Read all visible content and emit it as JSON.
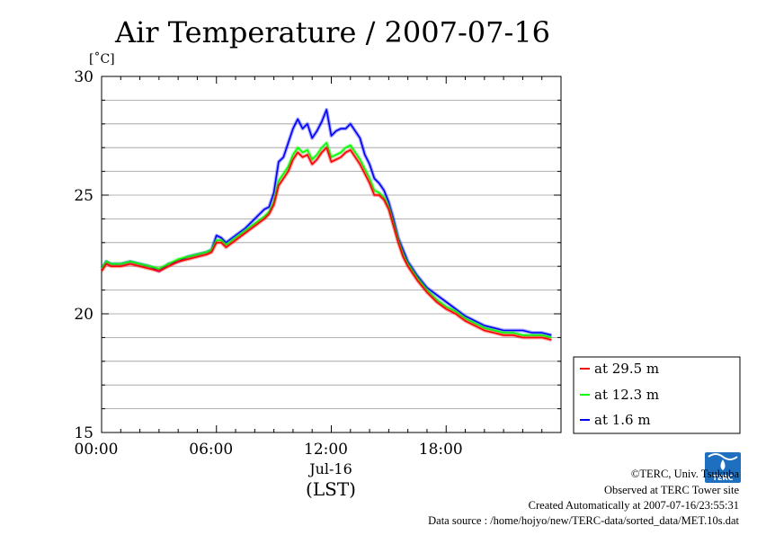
{
  "chart_data": {
    "type": "line",
    "title": "Air Temperature / 2007-07-16",
    "ylabel": "[˚C]",
    "xlabel_date": "Jul-16",
    "xlabel_zone": "(LST)",
    "ylim": [
      15,
      30
    ],
    "xlim_hours": [
      0,
      24
    ],
    "y_ticks": [
      "15",
      "20",
      "25",
      "30"
    ],
    "x_ticks": [
      "00:00",
      "06:00",
      "12:00",
      "18:00"
    ],
    "grid": true,
    "legend_position": "right",
    "x": [
      0,
      0.25,
      0.5,
      1.0,
      1.5,
      2.0,
      2.5,
      3.0,
      3.5,
      4.0,
      4.5,
      5.0,
      5.5,
      5.75,
      6.0,
      6.25,
      6.5,
      7.0,
      7.5,
      8.0,
      8.5,
      8.75,
      9.0,
      9.25,
      9.5,
      9.75,
      10.0,
      10.25,
      10.5,
      10.75,
      11.0,
      11.25,
      11.5,
      11.75,
      12.0,
      12.25,
      12.5,
      12.75,
      13.0,
      13.25,
      13.5,
      13.75,
      14.0,
      14.25,
      14.5,
      14.75,
      15.0,
      15.25,
      15.5,
      15.75,
      16.0,
      16.5,
      17.0,
      17.5,
      18.0,
      18.5,
      19.0,
      19.5,
      20.0,
      20.5,
      21.0,
      21.5,
      22.0,
      22.5,
      23.0,
      23.5
    ],
    "series": [
      {
        "name": "at 29.5 m",
        "color": "#ff0000",
        "values": [
          21.8,
          22.1,
          22.0,
          22.0,
          22.1,
          22.0,
          21.9,
          21.8,
          22.0,
          22.2,
          22.3,
          22.4,
          22.5,
          22.6,
          23.0,
          23.0,
          22.8,
          23.1,
          23.4,
          23.7,
          24.0,
          24.2,
          24.6,
          25.4,
          25.7,
          26.0,
          26.5,
          26.8,
          26.6,
          26.7,
          26.3,
          26.5,
          26.8,
          27.0,
          26.4,
          26.5,
          26.6,
          26.8,
          26.9,
          26.6,
          26.3,
          25.9,
          25.5,
          25.0,
          25.0,
          24.8,
          24.4,
          23.7,
          23.0,
          22.4,
          22.0,
          21.4,
          20.9,
          20.5,
          20.2,
          20.0,
          19.7,
          19.5,
          19.3,
          19.2,
          19.1,
          19.1,
          19.0,
          19.0,
          19.0,
          18.9
        ]
      },
      {
        "name": "at 12.3 m",
        "color": "#00ff00",
        "values": [
          21.9,
          22.2,
          22.1,
          22.1,
          22.2,
          22.1,
          22.0,
          21.9,
          22.1,
          22.3,
          22.4,
          22.5,
          22.6,
          22.7,
          23.1,
          23.1,
          22.9,
          23.2,
          23.5,
          23.8,
          24.1,
          24.3,
          24.7,
          25.6,
          25.9,
          26.2,
          26.7,
          27.0,
          26.8,
          26.9,
          26.5,
          26.7,
          27.0,
          27.2,
          26.6,
          26.7,
          26.8,
          27.0,
          27.1,
          26.8,
          26.5,
          26.1,
          25.7,
          25.2,
          25.1,
          24.9,
          24.5,
          23.8,
          23.1,
          22.5,
          22.1,
          21.5,
          21.0,
          20.6,
          20.3,
          20.1,
          19.8,
          19.6,
          19.4,
          19.3,
          19.2,
          19.2,
          19.1,
          19.1,
          19.1,
          19.0
        ]
      },
      {
        "name": "at 1.6 m",
        "color": "#0000ff",
        "values": [
          21.9,
          22.2,
          22.1,
          22.1,
          22.2,
          22.1,
          22.0,
          21.8,
          22.1,
          22.2,
          22.4,
          22.5,
          22.6,
          22.7,
          23.3,
          23.2,
          23.0,
          23.3,
          23.6,
          24.0,
          24.4,
          24.5,
          25.1,
          26.4,
          26.6,
          27.2,
          27.8,
          28.2,
          27.8,
          28.0,
          27.4,
          27.7,
          28.1,
          28.6,
          27.5,
          27.7,
          27.8,
          27.8,
          28.0,
          27.7,
          27.4,
          26.7,
          26.3,
          25.7,
          25.5,
          25.2,
          24.7,
          24.0,
          23.2,
          22.7,
          22.2,
          21.6,
          21.1,
          20.8,
          20.5,
          20.2,
          19.9,
          19.7,
          19.5,
          19.4,
          19.3,
          19.3,
          19.3,
          19.2,
          19.2,
          19.1
        ]
      }
    ]
  },
  "footer": {
    "copyright": "©TERC, Univ. Tsukuba",
    "site": "Observed at TERC Tower site",
    "created": "Created Automatically at 2007-07-16/23:55:31",
    "source": "Data source : /home/hojyo/new/TERC-data/sorted_data/MET.10s.dat",
    "logo_text": "TERC"
  }
}
